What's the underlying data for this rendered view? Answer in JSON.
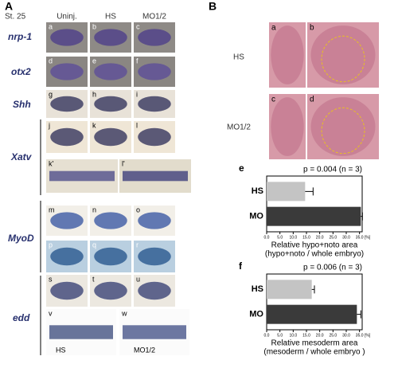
{
  "panel_a": {
    "label": "A",
    "stage": "St. 25",
    "columns": [
      "Uninj.",
      "HS",
      "MO1/2"
    ],
    "genes": [
      "nrp-1",
      "otx2",
      "Shh",
      "Xatv",
      "MyoD",
      "edd"
    ],
    "sublabels": [
      "a",
      "b",
      "c",
      "d",
      "e",
      "f",
      "g",
      "h",
      "i",
      "j",
      "k",
      "l",
      "k'",
      "l'",
      "m",
      "n",
      "o",
      "p",
      "q",
      "r",
      "s",
      "t",
      "u",
      "v",
      "w"
    ],
    "embryo_labels": [
      "HS",
      "MO1/2"
    ]
  },
  "panel_b": {
    "label": "B",
    "rows": [
      "HS",
      "MO1/2"
    ],
    "sublabels": [
      "a",
      "b",
      "c",
      "d"
    ]
  },
  "chart_e": {
    "type": "bar",
    "label": "e",
    "annotation": "p = 0.004 (n = 3)",
    "categories": [
      "HS",
      "MO"
    ],
    "values": [
      14.5,
      35.5
    ],
    "errors": [
      3,
      0.6
    ],
    "color": "#c4c4c4",
    "colors": [
      "#c4c4c4",
      "#3a3a3a"
    ],
    "xlim": [
      0,
      36
    ],
    "xticks": [
      {
        "value": 0,
        "label": "0.0"
      },
      {
        "value": 5,
        "label": "5.0"
      },
      {
        "value": 10,
        "label": "10.0"
      },
      {
        "value": 15,
        "label": "15.0"
      },
      {
        "value": 20,
        "label": "20.0"
      },
      {
        "value": 25,
        "label": "25.0"
      },
      {
        "value": 30,
        "label": "30.0"
      },
      {
        "value": 35,
        "label": "35.0"
      }
    ],
    "unit": "[%]",
    "xlabel": "Relative hypo+noto area",
    "xlabel2": "(hypo+noto / whole embryo)"
  },
  "chart_f": {
    "type": "bar",
    "label": "f",
    "annotation": "p = 0.006 (n = 3)",
    "categories": [
      "HS",
      "MO"
    ],
    "values": [
      17,
      34
    ],
    "errors": [
      1,
      1.5
    ],
    "colors": [
      "#c4c4c4",
      "#3a3a3a"
    ],
    "xlim": [
      0,
      36
    ],
    "xticks": [
      {
        "value": 0,
        "label": "0.0"
      },
      {
        "value": 5,
        "label": "5.0"
      },
      {
        "value": 10,
        "label": "10.0"
      },
      {
        "value": 15,
        "label": "15.0"
      },
      {
        "value": 20,
        "label": "20.0"
      },
      {
        "value": 25,
        "label": "25.0"
      },
      {
        "value": 30,
        "label": "30.0"
      },
      {
        "value": 35,
        "label": "35.0"
      }
    ],
    "unit": "[%]",
    "xlabel": "Relative mesoderm area",
    "xlabel2": "(mesoderm / whole embryo )"
  }
}
